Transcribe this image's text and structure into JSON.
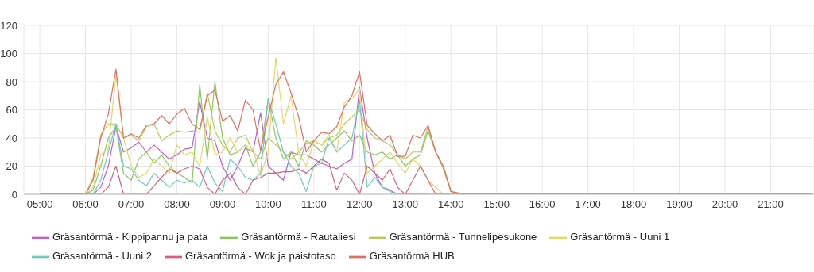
{
  "chart_data": {
    "type": "line",
    "x": [
      5,
      6,
      6.1667,
      6.3333,
      6.5,
      6.6667,
      6.8333,
      7,
      7.1667,
      7.3333,
      7.5,
      7.6667,
      7.8333,
      8,
      8.1667,
      8.3333,
      8.5,
      8.6667,
      8.8333,
      9,
      9.1667,
      9.3333,
      9.5,
      9.6667,
      9.8333,
      10,
      10.1667,
      10.3333,
      10.5,
      10.6667,
      10.8333,
      11,
      11.1667,
      11.3333,
      11.5,
      11.6667,
      11.8333,
      12,
      12.1667,
      12.3333,
      12.5,
      12.6667,
      12.8333,
      13,
      13.1667,
      13.3333,
      13.5,
      13.6667,
      13.8333,
      14,
      14.1667,
      14.3333,
      21.9
    ],
    "series": [
      {
        "name": "Gräsantörmä - Kippipannu ja pata",
        "color": "#c05fcf",
        "values": [
          0,
          0,
          0,
          5,
          20,
          48,
          30,
          33,
          37,
          30,
          35,
          30,
          25,
          28,
          32,
          33,
          66,
          40,
          38,
          20,
          10,
          20,
          33,
          30,
          58,
          20,
          15,
          10,
          30,
          28,
          28,
          25,
          22,
          20,
          18,
          22,
          25,
          76,
          40,
          15,
          5,
          3,
          0,
          0,
          0,
          0,
          0,
          null,
          null,
          null,
          null,
          null,
          null
        ]
      },
      {
        "name": "Gräsantörmä - Rautaliesi",
        "color": "#8dc65e",
        "values": [
          0,
          0,
          3,
          20,
          40,
          48,
          15,
          10,
          25,
          30,
          22,
          28,
          20,
          15,
          12,
          8,
          78,
          25,
          80,
          40,
          28,
          30,
          35,
          20,
          30,
          68,
          40,
          25,
          30,
          20,
          38,
          35,
          30,
          35,
          40,
          45,
          38,
          42,
          30,
          28,
          30,
          25,
          28,
          20,
          25,
          28,
          45,
          30,
          20,
          2,
          0,
          0,
          0
        ]
      },
      {
        "name": "Gräsantörmä - Tunnelipesukone",
        "color": "#b8c95a",
        "values": [
          0,
          0,
          12,
          42,
          50,
          50,
          40,
          42,
          38,
          48,
          50,
          38,
          42,
          45,
          44,
          45,
          44,
          72,
          45,
          35,
          30,
          40,
          42,
          30,
          25,
          40,
          35,
          30,
          25,
          30,
          36,
          38,
          35,
          40,
          42,
          50,
          55,
          60,
          46,
          40,
          38,
          35,
          28,
          25,
          30,
          30,
          48,
          30,
          18,
          2,
          0,
          0,
          0
        ]
      },
      {
        "name": "Gräsantörmä - Uuni 1",
        "color": "#e3d86a",
        "values": [
          0,
          0,
          5,
          28,
          32,
          85,
          40,
          20,
          12,
          15,
          25,
          20,
          15,
          35,
          28,
          30,
          20,
          55,
          28,
          30,
          40,
          30,
          35,
          32,
          13,
          30,
          97,
          50,
          70,
          30,
          20,
          38,
          35,
          42,
          30,
          65,
          68,
          75,
          15,
          20,
          25,
          30,
          22,
          15,
          25,
          20,
          10,
          5,
          0,
          0,
          0,
          0,
          0
        ]
      },
      {
        "name": "Gräsantörmä - Uuni 2",
        "color": "#72c8c0",
        "values": [
          0,
          0,
          0,
          10,
          30,
          50,
          20,
          18,
          10,
          6,
          15,
          10,
          5,
          10,
          8,
          10,
          5,
          20,
          8,
          2,
          25,
          20,
          12,
          10,
          15,
          68,
          50,
          30,
          20,
          15,
          2,
          20,
          22,
          40,
          30,
          35,
          40,
          67,
          5,
          12,
          5,
          2,
          0,
          0,
          0,
          1,
          0,
          0,
          0,
          0,
          0,
          0,
          0
        ]
      },
      {
        "name": "Gräsantörmä - Wok ja paistotaso",
        "color": "#d4607f",
        "values": [
          0,
          0,
          0,
          0,
          5,
          20,
          0,
          0,
          0,
          0,
          6,
          12,
          18,
          15,
          18,
          20,
          18,
          5,
          0,
          10,
          15,
          5,
          0,
          10,
          12,
          15,
          15,
          16,
          16,
          18,
          15,
          20,
          25,
          22,
          3,
          15,
          10,
          0,
          20,
          15,
          10,
          18,
          5,
          0,
          10,
          20,
          10,
          0,
          0,
          0,
          0,
          0,
          0
        ]
      },
      {
        "name": "Gräsantörmä HUB",
        "color": "#e07060",
        "values": [
          0,
          0,
          10,
          40,
          57,
          89,
          40,
          43,
          40,
          49,
          50,
          56,
          50,
          57,
          61,
          50,
          46,
          70,
          74,
          52,
          56,
          45,
          67,
          60,
          31,
          55,
          78,
          87,
          72,
          55,
          30,
          38,
          44,
          43,
          48,
          62,
          70,
          87,
          49,
          43,
          38,
          42,
          27,
          27,
          42,
          40,
          49,
          30,
          20,
          2,
          1,
          0,
          0
        ]
      }
    ],
    "xlim": [
      4.65,
      21.95
    ],
    "xticks": [
      {
        "value": 5,
        "label": "05:00"
      },
      {
        "value": 6,
        "label": "06:00"
      },
      {
        "value": 7,
        "label": "07:00"
      },
      {
        "value": 8,
        "label": "08:00"
      },
      {
        "value": 9,
        "label": "09:00"
      },
      {
        "value": 10,
        "label": "10:00"
      },
      {
        "value": 11,
        "label": "11:00"
      },
      {
        "value": 12,
        "label": "12:00"
      },
      {
        "value": 13,
        "label": "13:00"
      },
      {
        "value": 14,
        "label": "14:00"
      },
      {
        "value": 15,
        "label": "15:00"
      },
      {
        "value": 16,
        "label": "16:00"
      },
      {
        "value": 17,
        "label": "17:00"
      },
      {
        "value": 18,
        "label": "18:00"
      },
      {
        "value": 19,
        "label": "19:00"
      },
      {
        "value": 20,
        "label": "20:00"
      },
      {
        "value": 21,
        "label": "21:00"
      }
    ],
    "ylim": [
      0,
      120
    ],
    "yticks": [
      0,
      20,
      40,
      60,
      80,
      100,
      120
    ],
    "grid": true,
    "legend": "bottom",
    "marker": "none",
    "line_style": "solid"
  }
}
